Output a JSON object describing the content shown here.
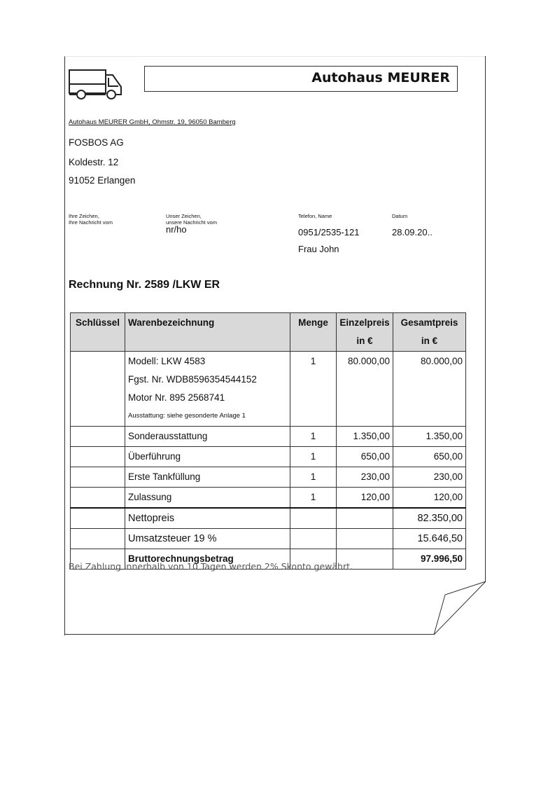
{
  "header": {
    "company_title": "Autohaus MEURER",
    "logo_icon": "truck-icon"
  },
  "sender_line": "Autohaus MEURER GmbH, Ohmstr. 19, 96050 Bamberg",
  "recipient": {
    "name": "FOSBOS AG",
    "street": "Koldestr. 12",
    "city": "91052 Erlangen"
  },
  "reference": {
    "ihre_label_1": "Ihre Zeichen,",
    "ihre_label_2": "Ihre Nachricht vom",
    "unser_label_1": "Unser Zeichen,",
    "unser_label_2": "unsere Nachricht vom",
    "unser_value": "nr/ho",
    "telefon_label": "Telefon, Name",
    "telefon_value": "0951/2535-121",
    "name_value": "Frau John",
    "datum_label": "Datum",
    "datum_value": "28.09.20.."
  },
  "invoice_title": "Rechnung Nr. 2589 /LKW ER",
  "table": {
    "headers": {
      "key": "Schlüssel",
      "desc": "Warenbezeichnung",
      "qty": "Menge",
      "unit1": "Einzelpreis",
      "unit2": "in €",
      "total1": "Gesamtpreis",
      "total2": "in €"
    },
    "main_item": {
      "line1": "Modell: LKW 4583",
      "line2": "Fgst. Nr. WDB8596354544152",
      "line3": "Motor Nr. 895 2568741",
      "line4": "Ausstattung: siehe gesonderte Anlage 1",
      "qty": "1",
      "unit": "80.000,00",
      "total": "80.000,00"
    },
    "rows": [
      {
        "desc": "Sonderausstattung",
        "qty": "1",
        "unit": "1.350,00",
        "total": "1.350,00"
      },
      {
        "desc": "Überführung",
        "qty": "1",
        "unit": "650,00",
        "total": "650,00"
      },
      {
        "desc": "Erste Tankfüllung",
        "qty": "1",
        "unit": "230,00",
        "total": "230,00"
      },
      {
        "desc": "Zulassung",
        "qty": "1",
        "unit": "120,00",
        "total": "120,00"
      }
    ],
    "net_label": "Nettopreis",
    "net_value": "82.350,00",
    "vat_label": "Umsatzsteuer 19 %",
    "vat_value": "15.646,50",
    "gross_label": "Bruttorechnungsbetrag",
    "gross_value": "97.996,50"
  },
  "payment_note": "Bei Zahlung innerhalb von 10 Tagen werden 2% Skonto gewährt."
}
